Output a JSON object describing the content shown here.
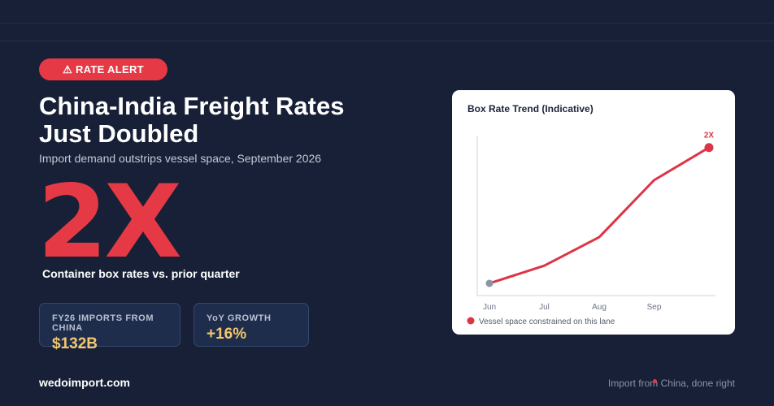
{
  "badge": "⚠ RATE ALERT",
  "title": [
    "China-India Freight Rates",
    "Just Doubled"
  ],
  "subtitle": "Import demand outstrips vessel space, September 2026",
  "big_stat": "2X",
  "big_stat_caption": "Container box rates vs. prior quarter",
  "stats": [
    {
      "label": "FY26 IMPORTS FROM CHINA",
      "value": "$132B"
    },
    {
      "label": "YoY GROWTH",
      "value": "+16%"
    }
  ],
  "footer": {
    "brand": "wedoimport.com",
    "tagline": "Import from China, done right"
  },
  "chart_data": {
    "type": "line",
    "title": "Box Rate Trend (Indicative)",
    "categories": [
      "Jun",
      "Jul",
      "Aug",
      "Sep",
      null
    ],
    "series": [
      {
        "name": "Vessel space constrained on this lane",
        "color": "#dc3545",
        "values": [
          1,
          1.13,
          1.34,
          1.76,
          2
        ],
        "value_labels": [
          null,
          null,
          null,
          null,
          "2X"
        ]
      }
    ],
    "start_point_color": "#8a94a6",
    "ylim": [
      0.91,
      2.1
    ]
  }
}
